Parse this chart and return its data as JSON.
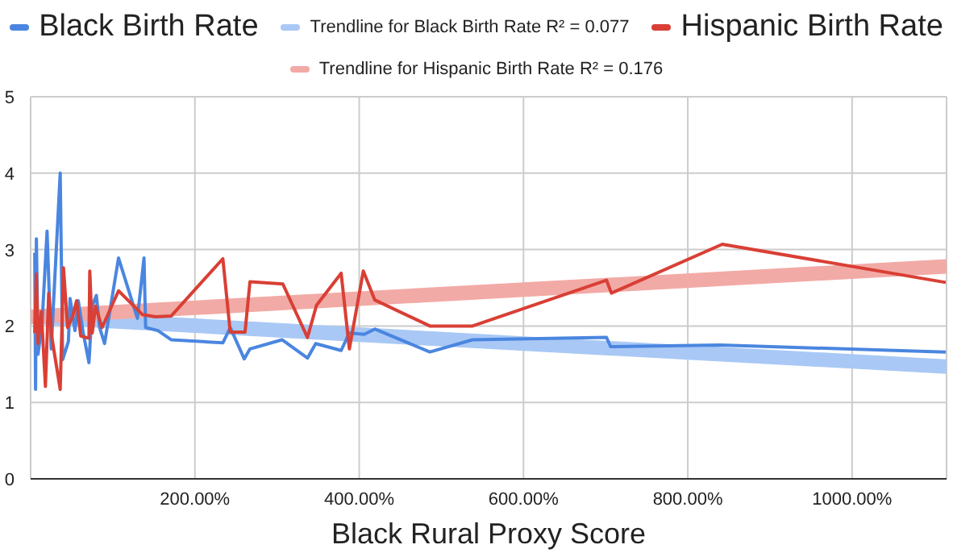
{
  "chart_data": {
    "type": "line",
    "xlabel": "Black Rural Proxy Score",
    "xlim": [
      0,
      1115
    ],
    "xticks": [
      {
        "value": 200,
        "label": "200.00%"
      },
      {
        "value": 400,
        "label": "400.00%"
      },
      {
        "value": 600,
        "label": "600.00%"
      },
      {
        "value": 800,
        "label": "800.00%"
      },
      {
        "value": 1000,
        "label": "1000.00%"
      }
    ],
    "ylim": [
      0,
      5
    ],
    "yticks": [
      0,
      1,
      2,
      3,
      4,
      5
    ],
    "grid": true,
    "legend": "top",
    "marker": "none",
    "line_style": "solid",
    "series": [
      {
        "name": "Black Birth Rate",
        "color": "#4a86e0",
        "x": [
          5,
          6,
          7,
          9,
          14,
          20,
          25,
          36,
          39,
          46,
          48,
          54,
          58,
          64,
          71,
          75,
          80,
          84,
          90,
          107,
          130,
          138,
          140,
          155,
          171,
          234,
          243,
          260,
          267,
          306,
          337,
          347,
          378,
          388,
          406,
          419,
          486,
          538,
          701,
          706,
          839,
          1114
        ],
        "values": [
          2.96,
          1.17,
          3.14,
          1.63,
          2.05,
          3.24,
          1.7,
          4.0,
          1.56,
          1.8,
          2.36,
          1.94,
          2.33,
          1.91,
          1.52,
          2.26,
          2.4,
          1.98,
          1.77,
          2.89,
          2.1,
          2.89,
          1.98,
          1.94,
          1.82,
          1.78,
          1.98,
          1.57,
          1.7,
          1.82,
          1.58,
          1.77,
          1.68,
          1.91,
          1.89,
          1.96,
          1.66,
          1.82,
          1.85,
          1.73,
          1.75,
          1.66
        ]
      },
      {
        "name": "Trendline for Black Birth Rate R² = 0.077",
        "color": "#a9c8f5",
        "x": [
          0,
          1115
        ],
        "values": [
          2.12,
          1.47
        ]
      },
      {
        "name": "Hispanic Birth Rate",
        "color": "#d93f35",
        "x": [
          5,
          7,
          9,
          13,
          18,
          22,
          26,
          36,
          40,
          45,
          51,
          56,
          61,
          71,
          72,
          75,
          79,
          87,
          107,
          136,
          152,
          171,
          234,
          243,
          261,
          267,
          307,
          337,
          348,
          378,
          388,
          405,
          419,
          486,
          538,
          701,
          707,
          842,
          1114
        ],
        "values": [
          1.91,
          2.68,
          1.77,
          2.19,
          1.21,
          2.43,
          1.84,
          1.17,
          2.76,
          1.98,
          2.12,
          2.33,
          1.87,
          1.84,
          2.72,
          1.91,
          2.26,
          1.98,
          2.46,
          2.15,
          2.12,
          2.13,
          2.88,
          1.92,
          1.92,
          2.58,
          2.55,
          1.85,
          2.27,
          2.69,
          1.7,
          2.72,
          2.34,
          2.0,
          2.0,
          2.6,
          2.43,
          3.07,
          2.57
        ]
      },
      {
        "name": "Trendline for Hispanic Birth Rate R² = 0.176",
        "color": "#f2aaa6",
        "x": [
          0,
          1115
        ],
        "values": [
          2.12,
          2.78
        ]
      }
    ]
  }
}
